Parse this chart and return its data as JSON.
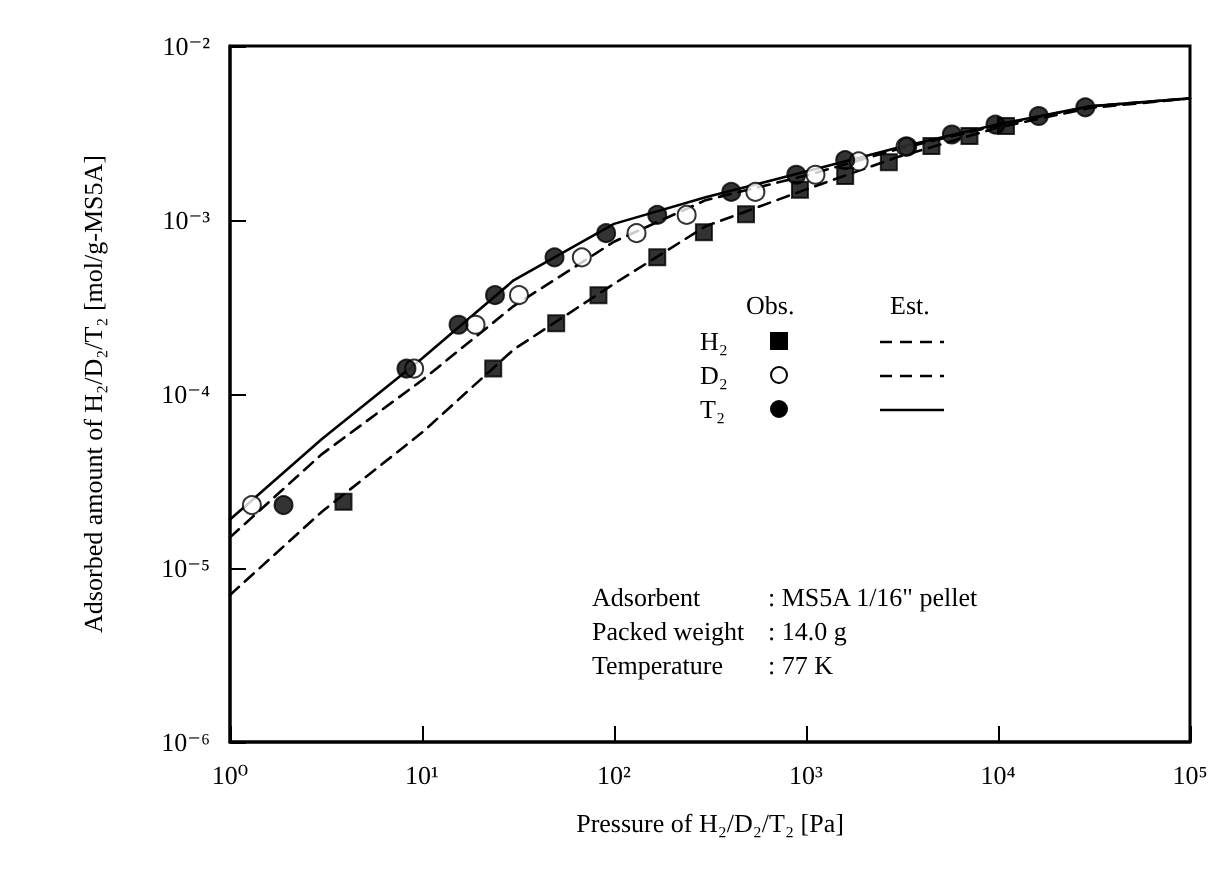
{
  "chart_data": {
    "type": "scatter",
    "xlabel": "Pressure of H₂/D₂/T₂ [Pa]",
    "ylabel": "Adsorbed amount of H₂/D₂/T₂ [mol/g-MS5A]",
    "log": "xy",
    "xlim": [
      1,
      100000
    ],
    "ylim": [
      1e-06,
      0.01
    ],
    "xticks": [
      {
        "value": 1,
        "label": "10⁰"
      },
      {
        "value": 10,
        "label": "10¹"
      },
      {
        "value": 100,
        "label": "10²"
      },
      {
        "value": 1000,
        "label": "10³"
      },
      {
        "value": 10000,
        "label": "10⁴"
      },
      {
        "value": 100000,
        "label": "10⁵"
      }
    ],
    "yticks": [
      {
        "value": 1e-06,
        "label": "10⁻⁶"
      },
      {
        "value": 1e-05,
        "label": "10⁻⁵"
      },
      {
        "value": 0.0001,
        "label": "10⁻⁴"
      },
      {
        "value": 0.001,
        "label": "10⁻³"
      },
      {
        "value": 0.01,
        "label": "10⁻²"
      }
    ],
    "grid": false,
    "legend": "center",
    "annotations": [
      "Obs.",
      "Est.",
      "Adsorbent : MS5A 1/16\" pellet",
      "Packed weight : 14.0 g",
      "Temperature : 77 K"
    ],
    "series": [
      {
        "name": "H₂",
        "marker": "square",
        "color": "#000000",
        "x": [
          3.9,
          23.5,
          50,
          83,
          168,
          294,
          487,
          930,
          1600,
          2700,
          4500,
          7100,
          11000
        ],
        "values": [
          2.4e-05,
          0.00014,
          0.000255,
          0.00037,
          0.00061,
          0.00085,
          0.00108,
          0.00149,
          0.00179,
          0.00215,
          0.00266,
          0.00304,
          0.00347
        ]
      },
      {
        "name": "D₂",
        "marker": "circle",
        "color": "#ffffff",
        "x": [
          1.3,
          9.1,
          19,
          32,
          68,
          131,
          239,
          545,
          1120,
          1880,
          3300
        ],
        "values": [
          2.3e-05,
          0.00014,
          0.00025,
          0.00037,
          0.00061,
          0.00084,
          0.00107,
          0.00145,
          0.00182,
          0.00217,
          0.00264
        ]
      },
      {
        "name": "T₂",
        "marker": "circle",
        "color": "#000000",
        "x": [
          1.9,
          8.3,
          15.5,
          24,
          49,
          91,
          168,
          408,
          890,
          1600,
          3370,
          5750,
          9700,
          16300,
          28500
        ],
        "values": [
          2.3e-05,
          0.00014,
          0.00025,
          0.00037,
          0.00061,
          0.00084,
          0.00107,
          0.00145,
          0.00182,
          0.00221,
          0.00264,
          0.0031,
          0.00353,
          0.00396,
          0.00444
        ]
      },
      {
        "type": "line",
        "line_style": "dashed",
        "color": "#000000",
        "x": [
          1,
          3,
          10,
          30,
          100,
          300,
          1000,
          3000,
          10000,
          30000,
          100000
        ],
        "values": [
          7e-06,
          2.1e-05,
          6e-05,
          0.00018,
          0.00043,
          0.00092,
          0.0015,
          0.0023,
          0.0034,
          0.0044,
          0.005
        ]
      },
      {
        "type": "line",
        "line_style": "dashed",
        "color": "#000000",
        "x": [
          1,
          3,
          10,
          30,
          100,
          300,
          1000,
          3000,
          10000,
          30000,
          100000
        ],
        "values": [
          1.5e-05,
          4.5e-05,
          0.00012,
          0.00032,
          0.00075,
          0.0013,
          0.0018,
          0.00255,
          0.0035,
          0.0045,
          0.005
        ]
      },
      {
        "type": "line",
        "line_style": "solid",
        "color": "#000000",
        "x": [
          1,
          3,
          10,
          30,
          100,
          300,
          1000,
          3000,
          10000,
          30000,
          100000
        ],
        "values": [
          1.9e-05,
          5.5e-05,
          0.00016,
          0.00045,
          0.00095,
          0.00135,
          0.0019,
          0.0026,
          0.00355,
          0.0045,
          0.005
        ]
      }
    ]
  }
}
